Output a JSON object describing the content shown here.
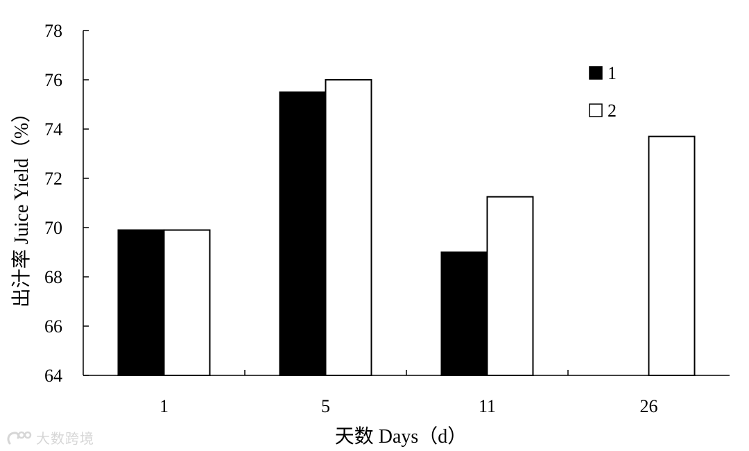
{
  "chart_data": {
    "type": "bar",
    "categories": [
      "1",
      "5",
      "11",
      "26"
    ],
    "series": [
      {
        "name": "1",
        "values": [
          69.9,
          75.5,
          69.0,
          null
        ],
        "color": "#000000",
        "fill": "solid"
      },
      {
        "name": "2",
        "values": [
          69.9,
          76.0,
          71.25,
          73.7
        ],
        "color": "#ffffff",
        "fill": "hollow"
      }
    ],
    "title": "",
    "xlabel": "天数 Days（d）",
    "ylabel": "出汁率 Juice Yield（%）",
    "ylim": [
      64,
      78
    ],
    "yticks": [
      64,
      66,
      68,
      70,
      72,
      74,
      76,
      78
    ],
    "grid": false,
    "legend_position": "top-right"
  },
  "watermark": {
    "text": "大数跨境",
    "icon": "logo-icon"
  }
}
